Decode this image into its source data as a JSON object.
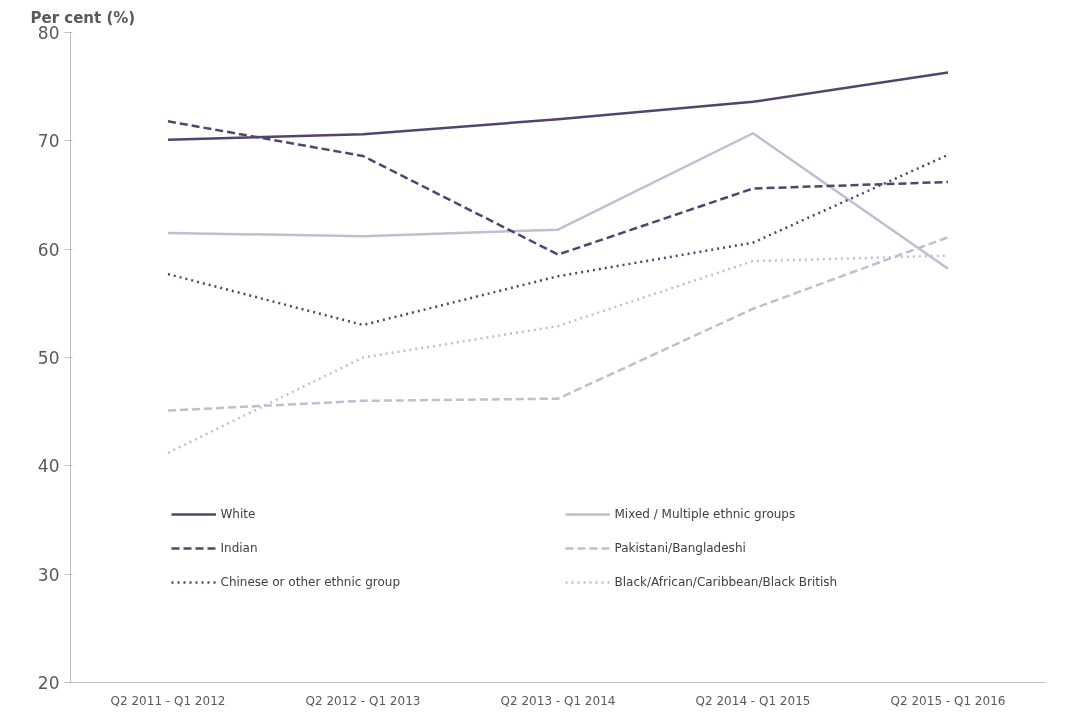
{
  "chart_data": {
    "type": "line",
    "ylabel": "Per cent (%)",
    "categories": [
      "Q2 2011 - Q1 2012",
      "Q2 2012 - Q1 2013",
      "Q2 2013 - Q1 2014",
      "Q2 2014 - Q1 2015",
      "Q2 2015 - Q1 2016"
    ],
    "ylim": [
      20,
      80
    ],
    "yticks": [
      20,
      30,
      40,
      50,
      60,
      70,
      80
    ],
    "grid": false,
    "legend": "bottom",
    "marker": "none",
    "series": [
      {
        "name": "White",
        "color": "#51446e",
        "line_style": "solid",
        "values": [
          70.1,
          70.6,
          72.0,
          73.6,
          76.3
        ]
      },
      {
        "name": "Mixed / Multiple ethnic groups",
        "color": "#c3bcd2",
        "line_style": "solid",
        "values": [
          61.5,
          61.2,
          61.8,
          70.7,
          58.2
        ]
      },
      {
        "name": "Indian",
        "color": "#51446e",
        "line_style": "dashed",
        "values": [
          71.8,
          68.6,
          59.5,
          65.6,
          66.2
        ]
      },
      {
        "name": "Pakistani/Bangladeshi",
        "color": "#c3bcd2",
        "line_style": "dashed",
        "values": [
          45.1,
          46.0,
          46.2,
          54.5,
          61.1
        ]
      },
      {
        "name": "Chinese or other ethnic group",
        "color": "#51446e",
        "line_style": "dotted",
        "values": [
          57.7,
          53.0,
          57.5,
          60.6,
          68.7
        ]
      },
      {
        "name": "Black/African/Caribbean/Black British",
        "color": "#c3bcd2",
        "line_style": "dotted",
        "values": [
          41.2,
          50.0,
          52.9,
          58.9,
          59.4
        ]
      }
    ]
  }
}
